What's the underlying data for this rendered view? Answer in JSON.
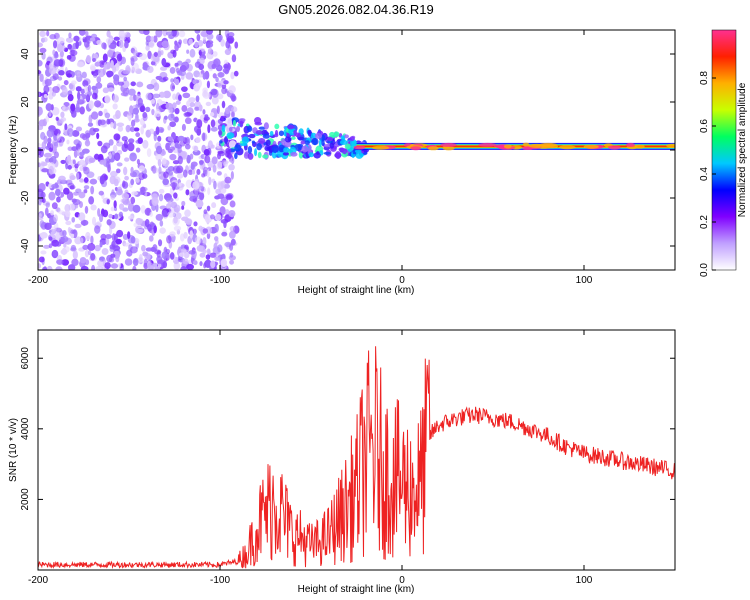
{
  "chart_data": [
    {
      "type": "heatmap",
      "title": "GN05.2026.082.04.36.R19",
      "xlabel": "Height of straight line (km)",
      "ylabel": "Frequency (Hz)",
      "xlim": [
        -200,
        150
      ],
      "ylim": [
        -50,
        50
      ],
      "x_ticks": [
        -200,
        -100,
        0,
        100
      ],
      "y_ticks": [
        -40,
        -20,
        0,
        20,
        40
      ],
      "noise_region": {
        "x_from": -200,
        "x_to": -91,
        "y_from": -50,
        "y_to": 50
      },
      "signal_band": {
        "x_from": -100,
        "x_to": 150,
        "center_hz": [
          5,
          2,
          1,
          1
        ]
      },
      "colorbar": {
        "label": "Normalized spectral amplitude",
        "range": [
          0.0,
          1.0
        ],
        "ticks": [
          0.0,
          0.2,
          0.4,
          0.6,
          0.8
        ],
        "tick_labels": [
          "0.0",
          "0.2",
          "0.4",
          "0.6",
          "0.8"
        ],
        "colors": [
          "#ffffff",
          "#c0a0ff",
          "#8000ff",
          "#0000ff",
          "#00c8ff",
          "#00ff60",
          "#c8ff00",
          "#ffb000",
          "#ff2000",
          "#ff3090"
        ]
      }
    },
    {
      "type": "line",
      "xlabel": "Height of straight line (km)",
      "ylabel": "SNR (10 * v/v)",
      "xlim": [
        -200,
        150
      ],
      "ylim": [
        0,
        6800
      ],
      "x_ticks": [
        -200,
        -100,
        0,
        100
      ],
      "y_ticks": [
        2000,
        4000,
        6000
      ],
      "series": [
        {
          "name": "SNR",
          "color": "#ee2222",
          "x": [
            -200,
            -150,
            -100,
            -90,
            -85,
            -80,
            -75,
            -70,
            -65,
            -60,
            -55,
            -50,
            -45,
            -40,
            -35,
            -30,
            -25,
            -20,
            -15,
            -10,
            -5,
            0,
            5,
            10,
            15,
            20,
            30,
            40,
            50,
            60,
            70,
            80,
            90,
            100,
            110,
            120,
            130,
            140,
            150
          ],
          "y": [
            150,
            150,
            150,
            250,
            500,
            1200,
            1600,
            2000,
            1500,
            1000,
            900,
            700,
            800,
            1000,
            1400,
            1800,
            2300,
            3200,
            3500,
            2800,
            2600,
            2500,
            2300,
            2400,
            3800,
            4100,
            4300,
            4400,
            4300,
            4200,
            4000,
            3800,
            3500,
            3300,
            3200,
            3100,
            3000,
            2900,
            2800
          ]
        }
      ]
    }
  ]
}
